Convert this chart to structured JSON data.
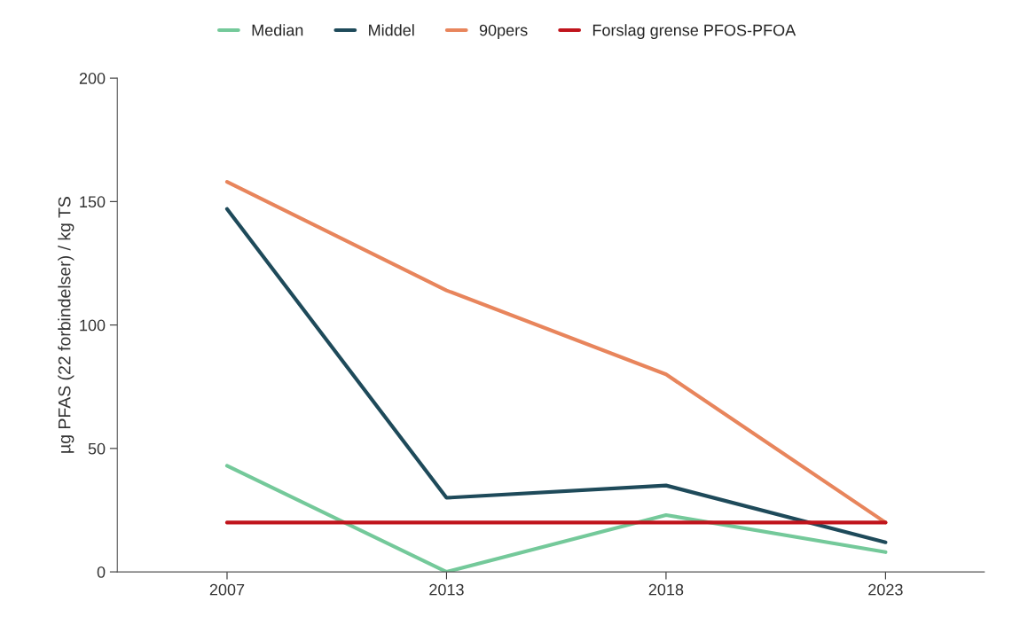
{
  "chart_data": {
    "type": "line",
    "categories": [
      "2007",
      "2013",
      "2018",
      "2023"
    ],
    "ylabel": "µg PFAS (22 forbindelser) / kg TS",
    "series": [
      {
        "name": "Median",
        "color": "#74c99a",
        "values": [
          43,
          0,
          23,
          8
        ]
      },
      {
        "name": "Middel",
        "color": "#1e4a5a",
        "values": [
          147,
          30,
          35,
          12
        ]
      },
      {
        "name": "90pers",
        "color": "#e8855c",
        "values": [
          158,
          114,
          80,
          20
        ]
      },
      {
        "name": "Forslag grense PFOS-PFOA",
        "color": "#c0141c",
        "values": [
          20,
          20,
          20,
          20
        ]
      }
    ],
    "ylim": [
      0,
      200
    ],
    "yticks": [
      0,
      50,
      100,
      150,
      200
    ],
    "grid": false,
    "legend": "top",
    "marker": "none",
    "line_style": "solid"
  }
}
